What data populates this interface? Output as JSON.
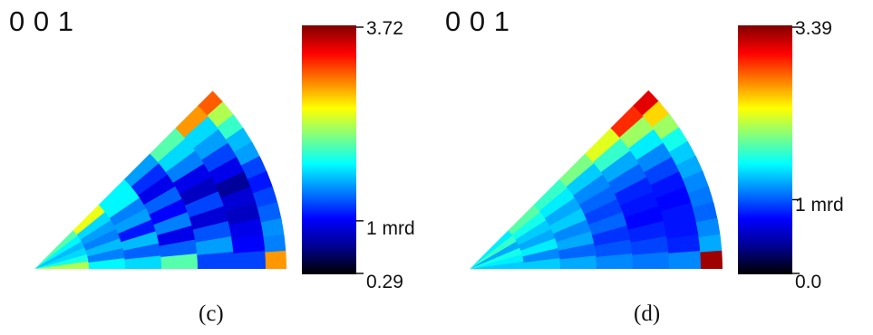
{
  "colormap": [
    "#000000",
    "#00008f",
    "#0000ff",
    "#0080ff",
    "#00ffff",
    "#80ff80",
    "#ffff00",
    "#ff8000",
    "#ff0000",
    "#800000"
  ],
  "panels": [
    {
      "id": "c",
      "direction_label": "0 0 1",
      "caption": "(c)",
      "colorbar": {
        "max_label": "3.72",
        "mid_label": "1 mrd",
        "min_label": "0.29",
        "max": 3.72,
        "mid": 1,
        "min": 0.29
      },
      "rings": [
        [
          1.9,
          1.6,
          1.4,
          1.5,
          1.7,
          2.2
        ],
        [
          2.4,
          1.5,
          1.3,
          1.2,
          1.4,
          1.2,
          1.6
        ],
        [
          1.6,
          1.6,
          1.2,
          1.3,
          0.9,
          1.4,
          1.1,
          1.5
        ],
        [
          1.3,
          0.95,
          0.8,
          1.1,
          0.85,
          1.2,
          0.8,
          1.1,
          1.9
        ],
        [
          1.9,
          1.5,
          1.2,
          0.8,
          0.7,
          1.0,
          0.75,
          1.05,
          1.3,
          1.0
        ],
        [
          2.8,
          1.5,
          1.3,
          1.0,
          0.8,
          0.6,
          0.75,
          0.7,
          0.8,
          0.85,
          1.0
        ],
        [
          3.0,
          2.2,
          1.8,
          1.4,
          1.3,
          1.0,
          0.9,
          1.0,
          1.1,
          1.25,
          1.2,
          2.8
        ]
      ]
    },
    {
      "id": "d",
      "direction_label": "0 0 1",
      "caption": "(d)",
      "colorbar": {
        "max_label": "3.39",
        "mid_label": "1 mrd",
        "min_label": "0.0",
        "max": 3.39,
        "mid": 1,
        "min": 0.0
      },
      "rings": [
        [
          1.5,
          1.7,
          1.3,
          1.6,
          1.5,
          1.4
        ],
        [
          1.8,
          1.6,
          1.4,
          1.3,
          1.5,
          1.2,
          1.4
        ],
        [
          1.7,
          1.5,
          1.3,
          1.4,
          1.2,
          1.3,
          1.1,
          1.3
        ],
        [
          1.9,
          1.4,
          1.2,
          1.1,
          1.0,
          1.1,
          0.95,
          1.05,
          1.2
        ],
        [
          2.2,
          1.7,
          1.3,
          1.1,
          0.9,
          0.85,
          0.8,
          0.9,
          1.0,
          1.15
        ],
        [
          2.9,
          2.0,
          1.5,
          1.2,
          1.0,
          0.85,
          0.8,
          0.85,
          0.85,
          0.9,
          1.2
        ],
        [
          3.1,
          2.4,
          2.0,
          1.6,
          1.4,
          1.3,
          1.2,
          1.15,
          1.1,
          1.2,
          1.3,
          3.3
        ]
      ]
    }
  ]
}
